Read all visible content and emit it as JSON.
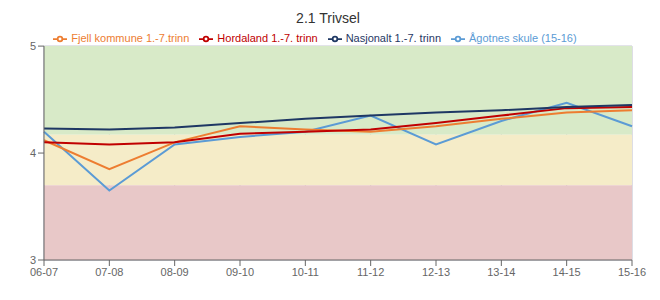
{
  "chart_data": {
    "type": "line",
    "title": "2.1 Trivsel",
    "categories": [
      "06-07",
      "07-08",
      "08-09",
      "09-10",
      "10-11",
      "11-12",
      "12-13",
      "13-14",
      "14-15",
      "15-16"
    ],
    "series": [
      {
        "name": "Ågotnes skule (15-16)",
        "color": "#5B9BD5",
        "values": [
          4.2,
          3.65,
          4.08,
          4.15,
          4.2,
          4.35,
          4.08,
          4.3,
          4.47,
          4.25
        ]
      },
      {
        "name": "Fjell kommune 1.-7.trinn",
        "color": "#ED7D31",
        "values": [
          4.12,
          3.85,
          4.1,
          4.25,
          4.22,
          4.2,
          4.25,
          4.32,
          4.38,
          4.4
        ]
      },
      {
        "name": "Hordaland 1.-7. trinn",
        "color": "#C00000",
        "values": [
          4.1,
          4.08,
          4.1,
          4.18,
          4.2,
          4.22,
          4.28,
          4.35,
          4.42,
          4.43
        ]
      },
      {
        "name": "Nasjonalt 1.-7. trinn",
        "color": "#1F3864",
        "values": [
          4.23,
          4.22,
          4.24,
          4.28,
          4.32,
          4.35,
          4.38,
          4.4,
          4.43,
          4.45
        ]
      }
    ],
    "bands": [
      {
        "from": 4.17,
        "to": 5,
        "color": "#D8EAC8"
      },
      {
        "from": 3.7,
        "to": 4.17,
        "color": "#F5ECC8"
      },
      {
        "from": 3,
        "to": 3.7,
        "color": "#E8C8C8"
      }
    ],
    "ylim": [
      3,
      5
    ],
    "yticks": [
      3,
      4,
      5
    ],
    "grid": true,
    "legend": "top"
  }
}
